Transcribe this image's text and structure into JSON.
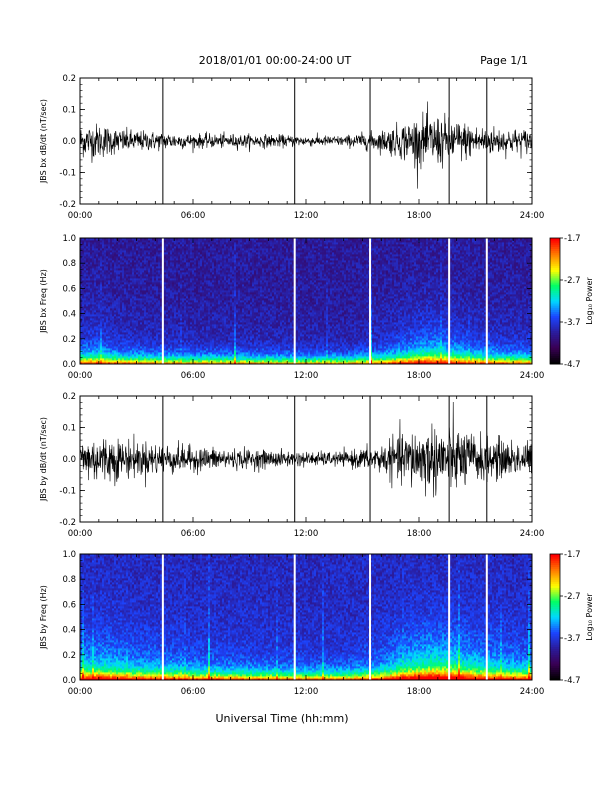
{
  "header": {
    "date_range": "2018/01/01  00:00-24:00 UT",
    "page": "Page 1/1"
  },
  "xlabel": "Universal Time (hh:mm)",
  "colors": {
    "trace": "#000000",
    "gap_lines": "#ffffff",
    "colormap": [
      "#000000",
      "#3a0055",
      "#2a1c9c",
      "#1c45ff",
      "#00d8ff",
      "#00ff66",
      "#ffff00",
      "#ff7f00",
      "#ff0000"
    ]
  },
  "chart_data": [
    {
      "type": "line",
      "ylabel": "JBS bx dB/dt (nT/sec)",
      "x_ticks": [
        "00:00",
        "06:00",
        "12:00",
        "18:00",
        "24:00"
      ],
      "xlim": [
        0,
        24
      ],
      "ylim": [
        -0.2,
        0.2
      ],
      "y_ticks": [
        "0.2",
        "0.1",
        "0.0",
        "-0.1",
        "-0.2"
      ],
      "y_tick_values": [
        0.2,
        0.1,
        0.0,
        -0.1,
        -0.2
      ],
      "data_gaps_hours": [
        4.4,
        11.4,
        15.4,
        19.6,
        21.6
      ],
      "amplitude_envelope": {
        "hours": [
          0,
          1,
          2,
          3,
          4.4,
          6,
          8,
          10,
          12,
          14,
          16,
          17,
          18,
          19,
          20,
          21,
          22,
          23,
          24
        ],
        "amplitude": [
          0.045,
          0.05,
          0.035,
          0.03,
          0.025,
          0.02,
          0.02,
          0.018,
          0.015,
          0.015,
          0.03,
          0.05,
          0.07,
          0.075,
          0.06,
          0.045,
          0.04,
          0.035,
          0.035
        ]
      }
    },
    {
      "type": "heatmap",
      "ylabel": "JBS bx Freq (Hz)",
      "x_ticks": [
        "00:00",
        "06:00",
        "12:00",
        "18:00",
        "24:00"
      ],
      "xlim": [
        0,
        24
      ],
      "ylim": [
        0.0,
        1.0
      ],
      "y_ticks": [
        "1.0",
        "0.8",
        "0.6",
        "0.4",
        "0.2",
        "0.0"
      ],
      "y_tick_values": [
        1.0,
        0.8,
        0.6,
        0.4,
        0.2,
        0.0
      ],
      "data_gaps_hours": [
        4.4,
        11.4,
        15.4,
        19.6,
        21.6
      ],
      "colorbar": {
        "label": "Log₁₀ Power",
        "range": [
          -4.7,
          -1.7
        ],
        "ticks": [
          "-1.7",
          "-2.7",
          "-3.7",
          "-4.7"
        ],
        "tick_values": [
          -1.7,
          -2.7,
          -3.7,
          -4.7
        ]
      }
    },
    {
      "type": "line",
      "ylabel": "JBS by dB/dt (nT/sec)",
      "x_ticks": [
        "00:00",
        "06:00",
        "12:00",
        "18:00",
        "24:00"
      ],
      "xlim": [
        0,
        24
      ],
      "ylim": [
        -0.2,
        0.2
      ],
      "y_ticks": [
        "0.2",
        "0.1",
        "0.0",
        "-0.1",
        "-0.2"
      ],
      "y_tick_values": [
        0.2,
        0.1,
        0.0,
        -0.1,
        -0.2
      ],
      "data_gaps_hours": [
        4.4,
        11.4,
        15.4,
        19.6,
        21.6
      ],
      "amplitude_envelope": {
        "hours": [
          0,
          1,
          2,
          3,
          4.4,
          6,
          8,
          10,
          12,
          14,
          16,
          17,
          18,
          19,
          20,
          21,
          22,
          23,
          24
        ],
        "amplitude": [
          0.06,
          0.07,
          0.06,
          0.05,
          0.045,
          0.035,
          0.03,
          0.025,
          0.02,
          0.02,
          0.04,
          0.07,
          0.09,
          0.1,
          0.09,
          0.07,
          0.06,
          0.05,
          0.05
        ]
      }
    },
    {
      "type": "heatmap",
      "ylabel": "JBS by Freq (Hz)",
      "x_ticks": [
        "00:00",
        "06:00",
        "12:00",
        "18:00",
        "24:00"
      ],
      "xlim": [
        0,
        24
      ],
      "ylim": [
        0.0,
        1.0
      ],
      "y_ticks": [
        "1.0",
        "0.8",
        "0.6",
        "0.4",
        "0.2",
        "0.0"
      ],
      "y_tick_values": [
        1.0,
        0.8,
        0.6,
        0.4,
        0.2,
        0.0
      ],
      "data_gaps_hours": [
        4.4,
        11.4,
        15.4,
        19.6,
        21.6
      ],
      "colorbar": {
        "label": "Log₁₀ Power",
        "range": [
          -4.7,
          -1.7
        ],
        "ticks": [
          "-1.7",
          "-2.7",
          "-3.7",
          "-4.7"
        ],
        "tick_values": [
          -1.7,
          -2.7,
          -3.7,
          -4.7
        ]
      }
    }
  ]
}
